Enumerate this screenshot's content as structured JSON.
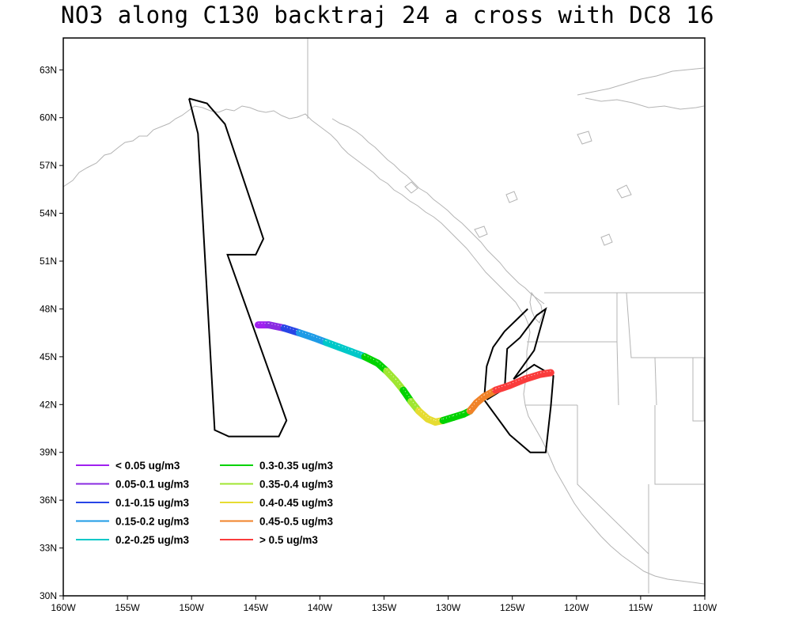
{
  "title": "NO3 along C130 backtraj 24 a cross with DC8 16",
  "map": {
    "lon_range": [
      -160,
      -110
    ],
    "lat_range": [
      30,
      65
    ],
    "x_ticks": [
      "160W",
      "155W",
      "150W",
      "145W",
      "140W",
      "135W",
      "130W",
      "125W",
      "120W",
      "115W",
      "110W"
    ],
    "y_ticks": [
      "30N",
      "33N",
      "36N",
      "39N",
      "42N",
      "45N",
      "48N",
      "51N",
      "54N",
      "57N",
      "60N",
      "63N"
    ],
    "coastline_color": "#b4b4b4",
    "flight_track_color": "#000000"
  },
  "flight_track": [
    [
      -150.2,
      61.2
    ],
    [
      -148.8,
      60.9
    ],
    [
      -147.4,
      59.6
    ],
    [
      -144.4,
      52.4
    ],
    [
      -145.0,
      51.4
    ],
    [
      -147.2,
      51.4
    ],
    [
      -142.6,
      41.0
    ],
    [
      -143.2,
      40.0
    ],
    [
      -147.1,
      40.0
    ],
    [
      -148.2,
      40.4
    ],
    [
      -149.5,
      59.0
    ],
    [
      -150.2,
      61.2
    ]
  ],
  "flight_track_east": [
    [
      -123.8,
      48.0
    ],
    [
      -125.6,
      46.6
    ],
    [
      -126.5,
      45.6
    ],
    [
      -127.0,
      44.4
    ],
    [
      -127.2,
      42.3
    ],
    [
      -125.2,
      40.1
    ],
    [
      -123.6,
      39.0
    ],
    [
      -122.4,
      39.0
    ],
    [
      -122.0,
      41.9
    ],
    [
      -121.8,
      43.8
    ],
    [
      -123.3,
      44.5
    ],
    [
      -124.9,
      43.6
    ],
    [
      -123.3,
      45.4
    ],
    [
      -122.4,
      48.0
    ],
    [
      -123.1,
      47.6
    ],
    [
      -124.4,
      46.2
    ],
    [
      -125.4,
      45.5
    ],
    [
      -125.6,
      43.0
    ],
    [
      -127.0,
      42.3
    ]
  ],
  "trajectory": {
    "colors": [
      "#a020f0",
      "#8a2be2",
      "#2845e6",
      "#1e9be6",
      "#00c8c8",
      "#00d200",
      "#a0e632",
      "#e6dc32",
      "#f08228",
      "#fa3c3c"
    ],
    "path": [
      [
        -144.8,
        47.0,
        0
      ],
      [
        -144.0,
        47.0,
        1
      ],
      [
        -142.8,
        46.8,
        2
      ],
      [
        -141.6,
        46.5,
        3
      ],
      [
        -140.5,
        46.2,
        3
      ],
      [
        -139.5,
        45.9,
        4
      ],
      [
        -138.5,
        45.6,
        4
      ],
      [
        -137.5,
        45.3,
        4
      ],
      [
        -136.5,
        45.0,
        5
      ],
      [
        -135.5,
        44.6,
        5
      ],
      [
        -134.8,
        44.1,
        6
      ],
      [
        -134.1,
        43.5,
        6
      ],
      [
        -133.5,
        42.9,
        5
      ],
      [
        -132.9,
        42.2,
        6
      ],
      [
        -132.3,
        41.6,
        7
      ],
      [
        -131.6,
        41.1,
        7
      ],
      [
        -131.0,
        40.9,
        7
      ],
      [
        -130.4,
        41.0,
        5
      ],
      [
        -129.6,
        41.2,
        5
      ],
      [
        -128.8,
        41.4,
        5
      ],
      [
        -128.3,
        41.6,
        8
      ],
      [
        -127.8,
        42.1,
        8
      ],
      [
        -127.2,
        42.5,
        8
      ],
      [
        -126.3,
        42.9,
        9
      ],
      [
        -125.2,
        43.2,
        9
      ],
      [
        -124.0,
        43.6,
        9
      ],
      [
        -122.8,
        43.9,
        9
      ],
      [
        -122.0,
        44.0,
        9
      ]
    ]
  },
  "legend": {
    "col1": [
      {
        "label": "< 0.05 ug/m3",
        "color": "#a020f0"
      },
      {
        "label": "0.05-0.1 ug/m3",
        "color": "#8a2be2"
      },
      {
        "label": "0.1-0.15 ug/m3",
        "color": "#2845e6"
      },
      {
        "label": "0.15-0.2 ug/m3",
        "color": "#1e9be6"
      },
      {
        "label": "0.2-0.25 ug/m3",
        "color": "#00c8c8"
      }
    ],
    "col2": [
      {
        "label": "0.3-0.35 ug/m3",
        "color": "#00d200"
      },
      {
        "label": "0.35-0.4 ug/m3",
        "color": "#a0e632"
      },
      {
        "label": "0.4-0.45 ug/m3",
        "color": "#e6dc32"
      },
      {
        "label": "0.45-0.5 ug/m3",
        "color": "#f08228"
      },
      {
        "label": "> 0.5 ug/m3",
        "color": "#fa3c3c"
      }
    ]
  }
}
